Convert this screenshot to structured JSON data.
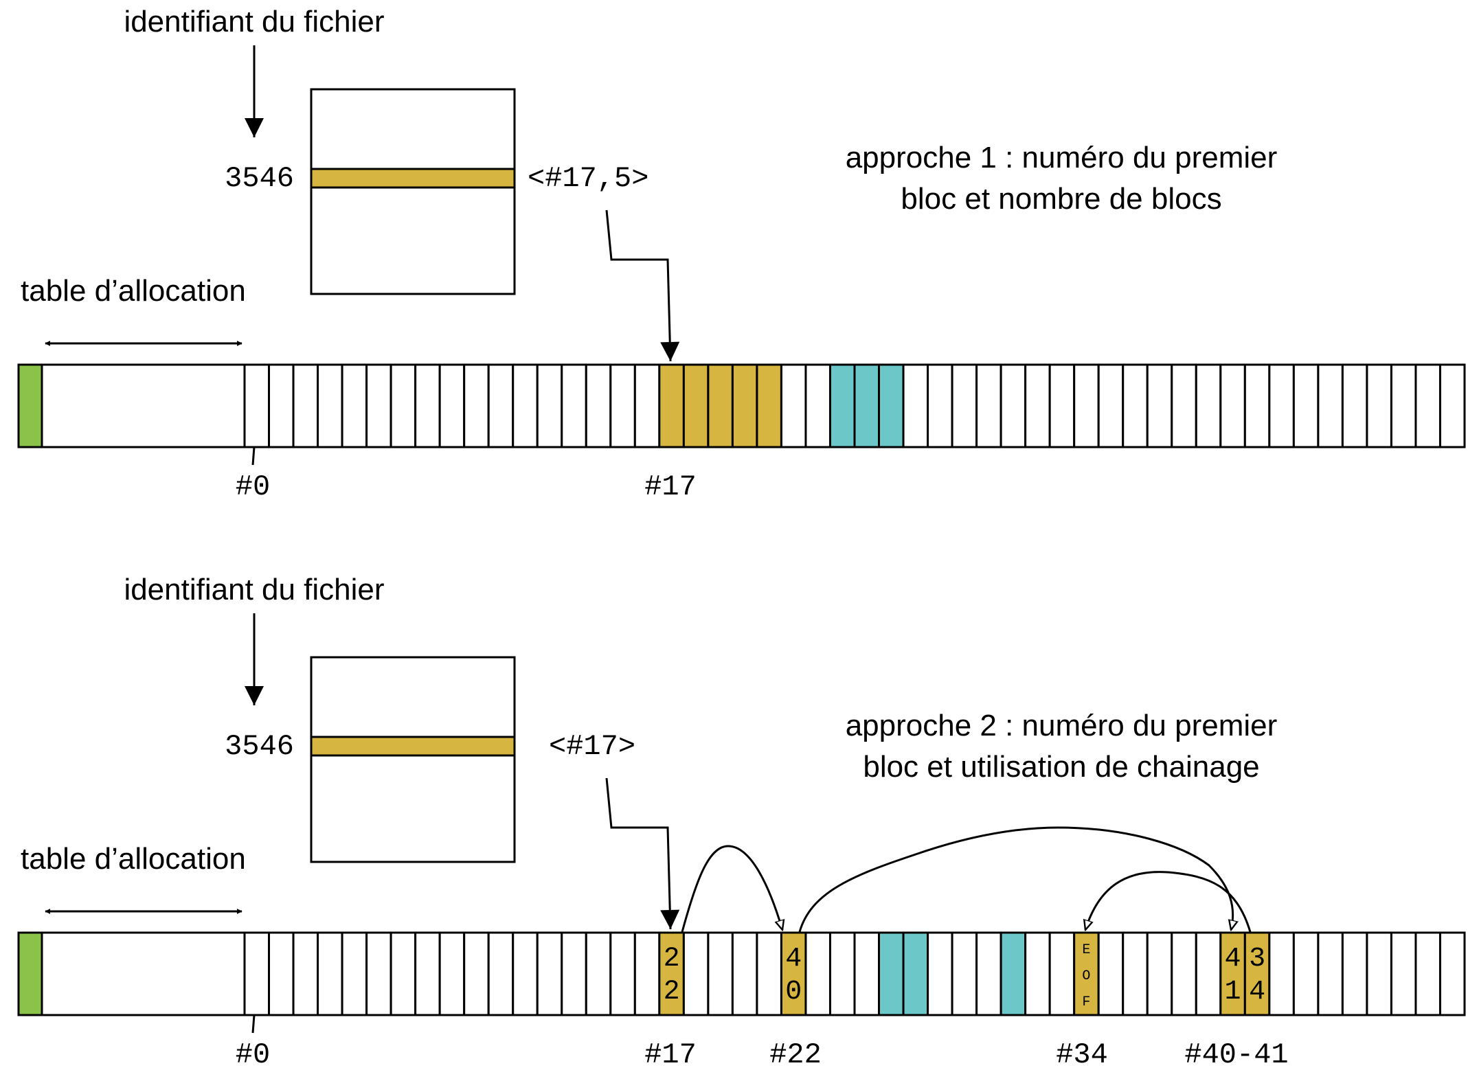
{
  "colors": {
    "meta_block": "#8bc34a",
    "file_block": "#d6b640",
    "other_block": "#6cc8c8",
    "stroke": "#000000"
  },
  "disk": {
    "total_blocks": 50,
    "file_id": "3546"
  },
  "approach1": {
    "file_id_label": "identifiant du fichier",
    "file_id": "3546",
    "entry": "<#17,5>",
    "description_line1": "approche 1 : numéro du premier",
    "description_line2": "bloc et nombre de blocs",
    "alloc_label": "table d’allocation",
    "tick_labels": [
      "#0",
      "#17"
    ],
    "file_blocks": [
      17,
      18,
      19,
      20,
      21
    ],
    "other_blocks": [
      24,
      25,
      26
    ]
  },
  "approach2": {
    "file_id_label": "identifiant du fichier",
    "file_id": "3546",
    "entry": "<#17>",
    "description_line1": "approche 2 : numéro du premier",
    "description_line2": "bloc et utilisation de chainage",
    "alloc_label": "table d’allocation",
    "tick_labels": [
      "#0",
      "#17",
      "#22",
      "#34",
      "#40-41"
    ],
    "chain": [
      {
        "block": 17,
        "next": "22"
      },
      {
        "block": 22,
        "next": "40"
      },
      {
        "block": 40,
        "next": "41"
      },
      {
        "block": 41,
        "next": "34"
      },
      {
        "block": 34,
        "next": "EOF"
      }
    ],
    "other_blocks": [
      26,
      27,
      31
    ]
  }
}
